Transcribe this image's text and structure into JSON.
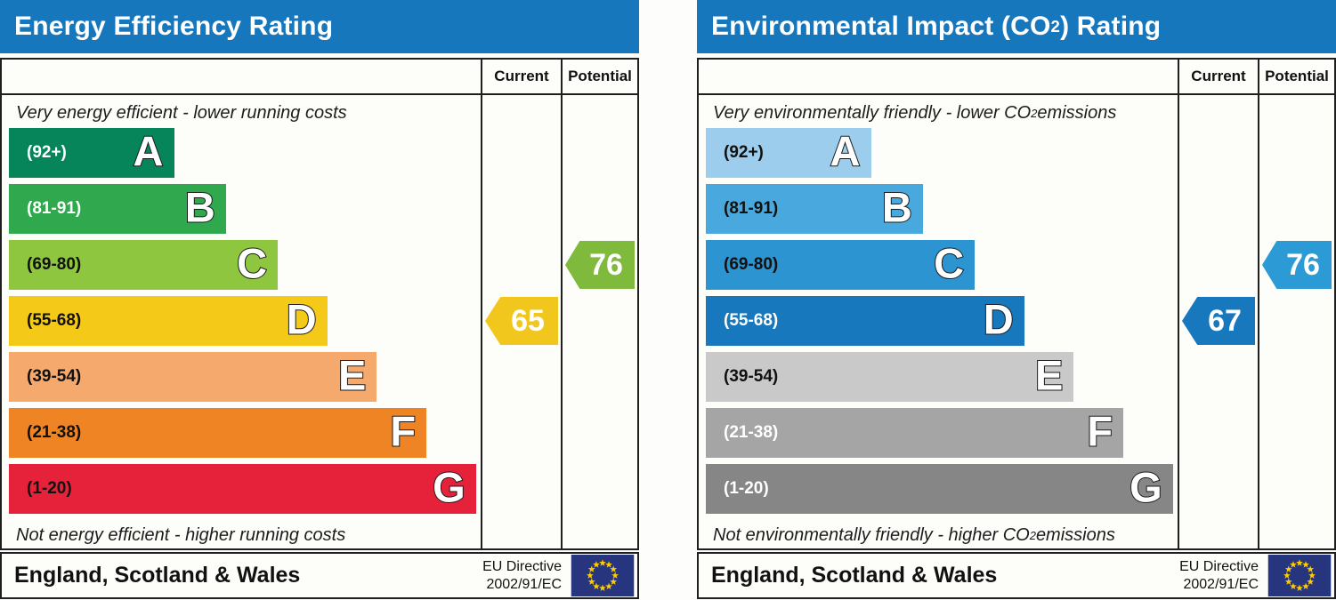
{
  "colors": {
    "header_blue": "#1777bd",
    "border": "#1f1f1f",
    "page_background": "#fdfdfb",
    "flag_blue": "#26357d",
    "star_yellow": "#ffcc00",
    "letter_fill": "#ffffff"
  },
  "chart_data": [
    {
      "type": "bar",
      "id": "energy-efficiency",
      "title_parts": {
        "pre": "Energy Efficiency Rating",
        "sub": "",
        "post": ""
      },
      "columns": [
        "Current",
        "Potential"
      ],
      "top_caption_parts": {
        "pre": "Very energy efficient - lower running costs",
        "sub": "",
        "post": ""
      },
      "bottom_caption_parts": {
        "pre": "Not energy efficient - higher running costs",
        "sub": "",
        "post": ""
      },
      "bands": [
        {
          "letter": "A",
          "range_label": "(92+)",
          "range": [
            92,
            100
          ],
          "color": "#058559",
          "label_color": "#ffffff",
          "width_pct": 35
        },
        {
          "letter": "B",
          "range_label": "(81-91)",
          "range": [
            81,
            91
          ],
          "color": "#2fa84e",
          "label_color": "#ffffff",
          "width_pct": 46
        },
        {
          "letter": "C",
          "range_label": "(69-80)",
          "range": [
            69,
            80
          ],
          "color": "#8ec640",
          "label_color": "#111111",
          "width_pct": 57
        },
        {
          "letter": "D",
          "range_label": "(55-68)",
          "range": [
            55,
            68
          ],
          "color": "#f4c918",
          "label_color": "#111111",
          "width_pct": 67.5
        },
        {
          "letter": "E",
          "range_label": "(39-54)",
          "range": [
            39,
            54
          ],
          "color": "#f6a96d",
          "label_color": "#111111",
          "width_pct": 78
        },
        {
          "letter": "F",
          "range_label": "(21-38)",
          "range": [
            21,
            38
          ],
          "color": "#ee8424",
          "label_color": "#111111",
          "width_pct": 88.5
        },
        {
          "letter": "G",
          "range_label": "(1-20)",
          "range": [
            1,
            20
          ],
          "color": "#e6213a",
          "label_color": "#111111",
          "width_pct": 99
        }
      ],
      "current": {
        "value": 65,
        "band": "D",
        "color": "#f2c71d"
      },
      "potential": {
        "value": 76,
        "band": "C",
        "color": "#7fba3d"
      },
      "footer": {
        "region": "England, Scotland & Wales",
        "directive_lines": [
          "EU Directive",
          "2002/91/EC"
        ]
      }
    },
    {
      "type": "bar",
      "id": "environmental-impact-co2",
      "title_parts": {
        "pre": "Environmental Impact (CO",
        "sub": "2",
        "post": ") Rating"
      },
      "columns": [
        "Current",
        "Potential"
      ],
      "top_caption_parts": {
        "pre": "Very environmentally friendly - lower CO",
        "sub": "2",
        "post": " emissions"
      },
      "bottom_caption_parts": {
        "pre": "Not environmentally friendly - higher CO",
        "sub": "2",
        "post": " emissions"
      },
      "bands": [
        {
          "letter": "A",
          "range_label": "(92+)",
          "range": [
            92,
            100
          ],
          "color": "#9ccdec",
          "label_color": "#111111",
          "width_pct": 35
        },
        {
          "letter": "B",
          "range_label": "(81-91)",
          "range": [
            81,
            91
          ],
          "color": "#49a9df",
          "label_color": "#111111",
          "width_pct": 46
        },
        {
          "letter": "C",
          "range_label": "(69-80)",
          "range": [
            69,
            80
          ],
          "color": "#2b94d1",
          "label_color": "#111111",
          "width_pct": 57
        },
        {
          "letter": "D",
          "range_label": "(55-68)",
          "range": [
            55,
            68
          ],
          "color": "#1878bd",
          "label_color": "#ffffff",
          "width_pct": 67.5
        },
        {
          "letter": "E",
          "range_label": "(39-54)",
          "range": [
            39,
            54
          ],
          "color": "#c9c9c9",
          "label_color": "#111111",
          "width_pct": 78
        },
        {
          "letter": "F",
          "range_label": "(21-38)",
          "range": [
            21,
            38
          ],
          "color": "#a5a5a5",
          "label_color": "#ffffff",
          "width_pct": 88.5
        },
        {
          "letter": "G",
          "range_label": "(1-20)",
          "range": [
            1,
            20
          ],
          "color": "#868686",
          "label_color": "#ffffff",
          "width_pct": 99
        }
      ],
      "current": {
        "value": 67,
        "band": "D",
        "color": "#1878bd"
      },
      "potential": {
        "value": 76,
        "band": "C",
        "color": "#2b9ad5"
      },
      "footer": {
        "region": "England, Scotland & Wales",
        "directive_lines": [
          "EU Directive",
          "2002/91/EC"
        ]
      }
    }
  ]
}
